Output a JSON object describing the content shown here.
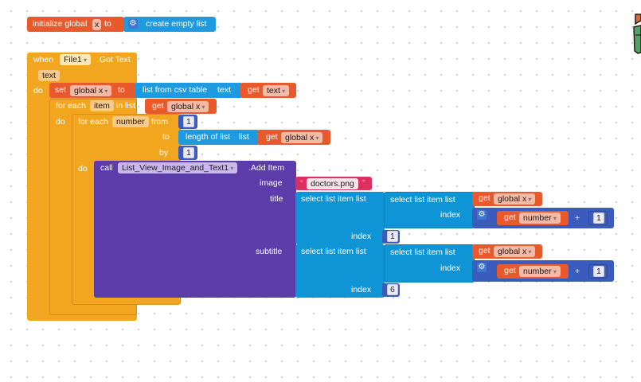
{
  "init": {
    "label": "initialize global",
    "var_name": "x",
    "to_label": "to",
    "value_label": "create empty list"
  },
  "event": {
    "when_label": "when",
    "component": "File1",
    "event_name": ".Got Text",
    "param": "text",
    "do_label": "do"
  },
  "set_stmt": {
    "set_label": "set",
    "var": "global x",
    "to_label": "to",
    "csv_label": "list from csv table",
    "text_label": "text",
    "get_label": "get",
    "get_var": "text"
  },
  "for_item": {
    "label": "for each",
    "var": "item",
    "in_label": "in list",
    "get_label": "get",
    "get_var": "global x",
    "do_label": "do"
  },
  "for_number": {
    "label": "for each",
    "var": "number",
    "from_label": "from",
    "from_val": "1",
    "to_label": "to",
    "length_label": "length of list",
    "list_label": "list",
    "get_label": "get",
    "get_var": "global x",
    "by_label": "by",
    "by_val": "1",
    "do_label": "do"
  },
  "call": {
    "call_label": "call",
    "component": "List_View_Image_and_Text1",
    "method": ".Add Item",
    "image_label": "image",
    "image_value": "doctors.png",
    "title_label": "title",
    "subtitle_label": "subtitle"
  },
  "title_expr": {
    "outer_label": "select list item list",
    "inner_label": "select list item list",
    "get_label": "get",
    "get_var": "global x",
    "index_label": "index",
    "num_get_label": "get",
    "num_var": "number",
    "plus": "+",
    "plus_val": "1",
    "outer_index_label": "index",
    "outer_index_val": "1"
  },
  "subtitle_expr": {
    "outer_label": "select list item list",
    "inner_label": "select list item list",
    "get_label": "get",
    "get_var": "global x",
    "index_label": "index",
    "num_get_label": "get",
    "num_var": "number",
    "plus": "+",
    "plus_val": "1",
    "outer_index_label": "index",
    "outer_index_val": "6"
  },
  "colors": {
    "variables": "#e8592b",
    "control": "#f2a51f",
    "lists": "#0f95d6",
    "component": "#5b3ca8",
    "text": "#de3060",
    "math": "#3b5bbd"
  }
}
